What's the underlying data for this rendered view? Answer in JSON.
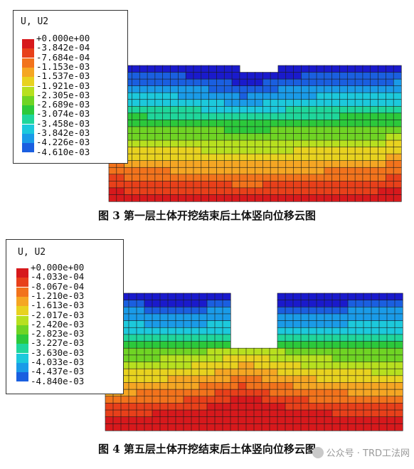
{
  "figures": [
    {
      "legend_title": "U, U2",
      "legend_values": [
        "+0.000e+00",
        "-3.842e-04",
        "-7.684e-04",
        "-1.153e-03",
        "-1.537e-03",
        "-1.921e-03",
        "-2.305e-03",
        "-2.689e-03",
        "-3.074e-03",
        "-3.458e-03",
        "-3.842e-03",
        "-4.226e-03",
        "-4.610e-03"
      ],
      "caption": "图 3  第一层土体开挖结束后土体竖向位移云图"
    },
    {
      "legend_title": "U, U2",
      "legend_values": [
        "+0.000e+00",
        "-4.033e-04",
        "-8.067e-04",
        "-1.210e-03",
        "-1.613e-03",
        "-2.017e-03",
        "-2.420e-03",
        "-2.823e-03",
        "-3.227e-03",
        "-3.630e-03",
        "-4.033e-03",
        "-4.437e-03",
        "-4.840e-03"
      ],
      "caption": "图 4  第五层土体开挖结束后土体竖向位移云图"
    }
  ],
  "legend_colors": [
    "#d7191c",
    "#e8401a",
    "#f2731c",
    "#f5a623",
    "#e8d21f",
    "#b7e01f",
    "#6fd424",
    "#2cc93b",
    "#1fd69b",
    "#1cc9dc",
    "#1a9be8",
    "#1a5fe0",
    "#1a1acc"
  ],
  "watermark": "公众号 · TRD工法网"
}
